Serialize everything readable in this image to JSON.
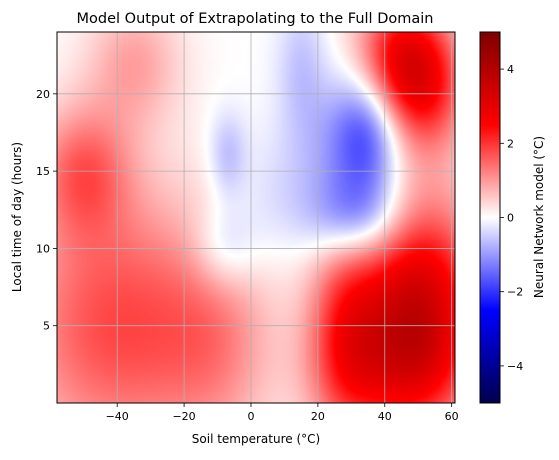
{
  "chart_data": {
    "type": "heatmap",
    "title": "Model Output of Extrapolating to the Full Domain",
    "xlabel": "Soil temperature (°C)",
    "ylabel": "Local time of day (hours)",
    "xlim": [
      -58,
      61
    ],
    "ylim": [
      0,
      24
    ],
    "xticks": [
      -40,
      -20,
      0,
      20,
      40,
      60
    ],
    "xtick_labels": [
      "−40",
      "−20",
      "0",
      "20",
      "40",
      "60"
    ],
    "yticks": [
      5,
      10,
      15,
      20
    ],
    "ytick_labels": [
      "5",
      "10",
      "15",
      "20"
    ],
    "grid": true,
    "colormap": "seismic",
    "colorbar": {
      "label": "Neural Network model (°C)",
      "range": [
        -5,
        5
      ],
      "ticks": [
        -4,
        -2,
        0,
        2,
        4
      ],
      "tick_labels": [
        "−4",
        "−2",
        "0",
        "2",
        "4"
      ],
      "colors": [
        "#00004c",
        "#0000ff",
        "#ffffff",
        "#ff0000",
        "#7f0000"
      ]
    },
    "blobs": [
      {
        "x": 45,
        "y": 22,
        "sx": 10,
        "sy": 3,
        "v": 2.8
      },
      {
        "x": 54,
        "y": 20,
        "sx": 8,
        "sy": 3,
        "v": 1.2
      },
      {
        "x": 50,
        "y": 6,
        "sx": 13,
        "sy": 5,
        "v": 3.4
      },
      {
        "x": 28,
        "y": 5,
        "sx": 8,
        "sy": 5,
        "v": 1.6
      },
      {
        "x": 40,
        "y": 2,
        "sx": 15,
        "sy": 3,
        "v": 1.0
      },
      {
        "x": -40,
        "y": 5,
        "sx": 22,
        "sy": 6,
        "v": 1.8
      },
      {
        "x": -10,
        "y": 4,
        "sx": 12,
        "sy": 5,
        "v": 0.8
      },
      {
        "x": -50,
        "y": 15,
        "sx": 10,
        "sy": 3,
        "v": 1.4
      },
      {
        "x": -35,
        "y": 22,
        "sx": 10,
        "sy": 3,
        "v": 0.9
      },
      {
        "x": 35,
        "y": 17.5,
        "sx": 7,
        "sy": 3,
        "v": -1.7
      },
      {
        "x": 32,
        "y": 12,
        "sx": 10,
        "sy": 2,
        "v": -1.4
      },
      {
        "x": 25,
        "y": 16,
        "sx": 10,
        "sy": 4,
        "v": -0.8
      },
      {
        "x": 15,
        "y": 22,
        "sx": 5,
        "sy": 3,
        "v": -0.5
      },
      {
        "x": -8,
        "y": 10,
        "sx": 7,
        "sy": 2,
        "v": -0.8
      },
      {
        "x": -7,
        "y": 16,
        "sx": 4,
        "sy": 2,
        "v": -0.7
      },
      {
        "x": 5,
        "y": 13,
        "sx": 8,
        "sy": 3,
        "v": -0.3
      }
    ]
  }
}
